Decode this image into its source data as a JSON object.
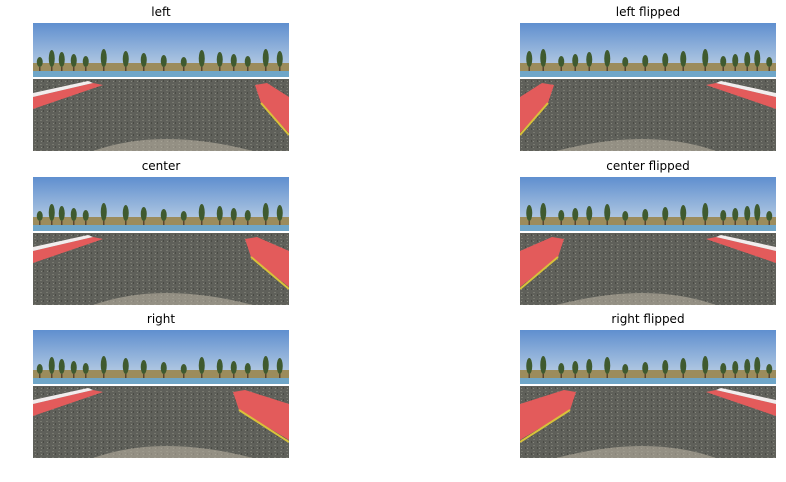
{
  "figure": {
    "panels": [
      {
        "title": "left",
        "view": "left",
        "flipped": false
      },
      {
        "title": "left flipped",
        "view": "left",
        "flipped": true
      },
      {
        "title": "center",
        "view": "center",
        "flipped": false
      },
      {
        "title": "center flipped",
        "view": "center",
        "flipped": true
      },
      {
        "title": "right",
        "view": "right",
        "flipped": false
      },
      {
        "title": "right flipped",
        "view": "right",
        "flipped": true
      }
    ]
  },
  "colors": {
    "sky_top": "#5f8fcf",
    "sky_bottom": "#c4d5e6",
    "water": "#6fa6c8",
    "track": "#5f605a",
    "curb_red": "#e35b5b",
    "curb_white": "#f2eded",
    "grass": "#9c8c5c",
    "tree": "#3f5a2f",
    "trunk": "#5a4630",
    "hood": "#c0b8a8",
    "lane_yellow": "#d8c23a"
  }
}
